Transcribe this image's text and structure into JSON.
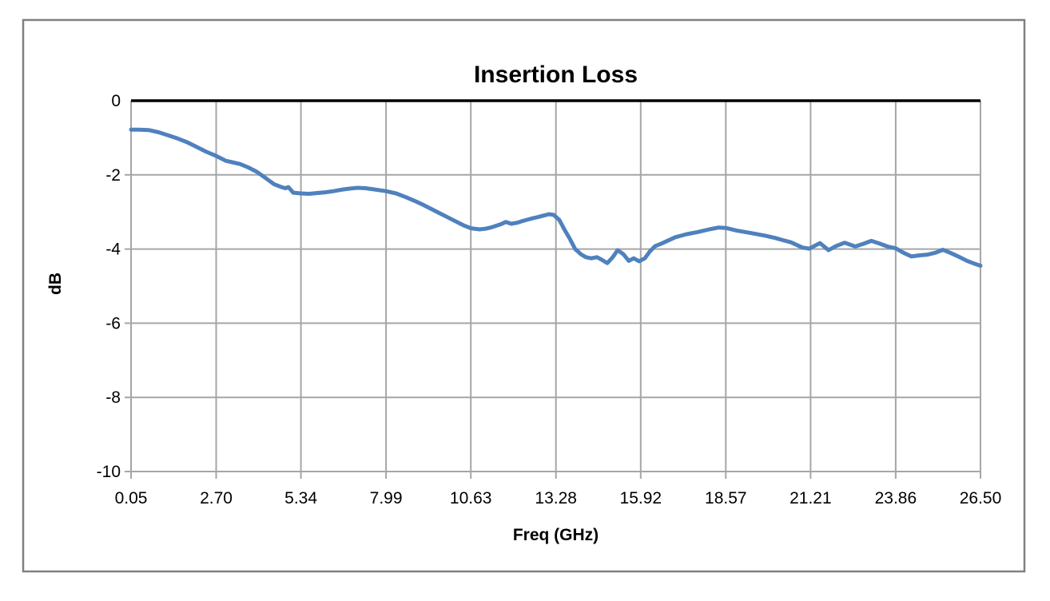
{
  "chart": {
    "background": "#ffffff",
    "plot_background": "#ffffff",
    "border_color": "#808080",
    "gridline_color": "#a6a6a6",
    "zero_axis_color": "#000000",
    "text_color": "#000000",
    "line_color": "#4f81bd"
  },
  "chart_data": {
    "type": "line",
    "title": "Insertion Loss",
    "xlabel": "Freq (GHz)",
    "ylabel": "dB",
    "xlim": [
      0.05,
      26.5
    ],
    "ylim": [
      -10,
      0
    ],
    "x_ticks": [
      0.05,
      2.7,
      5.34,
      7.99,
      10.63,
      13.28,
      15.92,
      18.57,
      21.21,
      23.86,
      26.5
    ],
    "x_tick_labels": [
      "0.05",
      "2.70",
      "5.34",
      "7.99",
      "10.63",
      "13.28",
      "15.92",
      "18.57",
      "21.21",
      "23.86",
      "26.50"
    ],
    "y_ticks": [
      0,
      -2,
      -4,
      -6,
      -8,
      -10
    ],
    "y_tick_labels": [
      "0",
      "-2",
      "-4",
      "-6",
      "-8",
      "-10"
    ],
    "grid": true,
    "legend": false,
    "series": [
      {
        "name": "Insertion Loss",
        "color": "#4f81bd",
        "x": [
          0.05,
          0.3,
          0.6,
          0.9,
          1.2,
          1.5,
          1.8,
          2.1,
          2.4,
          2.7,
          3.0,
          3.2,
          3.45,
          3.7,
          3.95,
          4.2,
          4.5,
          4.7,
          4.85,
          4.95,
          5.1,
          5.34,
          5.6,
          5.85,
          6.1,
          6.35,
          6.6,
          6.85,
          7.1,
          7.35,
          7.6,
          7.99,
          8.3,
          8.6,
          8.9,
          9.15,
          9.4,
          9.65,
          9.9,
          10.15,
          10.4,
          10.63,
          10.9,
          11.1,
          11.25,
          11.4,
          11.57,
          11.72,
          11.89,
          12.07,
          12.22,
          12.39,
          12.56,
          12.71,
          12.89,
          13.06,
          13.21,
          13.39,
          13.56,
          13.71,
          13.88,
          14.06,
          14.21,
          14.38,
          14.56,
          14.71,
          14.88,
          15.05,
          15.2,
          15.38,
          15.55,
          15.7,
          15.87,
          16.05,
          16.2,
          16.37,
          16.55,
          16.7,
          17.0,
          17.35,
          17.7,
          18.05,
          18.35,
          18.57,
          18.9,
          19.35,
          19.8,
          20.1,
          20.35,
          20.6,
          20.95,
          21.17,
          21.5,
          21.77,
          22.0,
          22.27,
          22.6,
          22.85,
          23.1,
          23.35,
          23.6,
          23.86,
          24.1,
          24.35,
          24.6,
          24.85,
          25.1,
          25.33,
          25.58,
          25.83,
          26.08,
          26.33,
          26.5
        ],
        "y": [
          -0.78,
          -0.78,
          -0.79,
          -0.85,
          -0.93,
          -1.02,
          -1.12,
          -1.25,
          -1.38,
          -1.49,
          -1.62,
          -1.66,
          -1.71,
          -1.8,
          -1.91,
          -2.06,
          -2.25,
          -2.32,
          -2.36,
          -2.33,
          -2.48,
          -2.5,
          -2.51,
          -2.49,
          -2.47,
          -2.44,
          -2.4,
          -2.37,
          -2.35,
          -2.36,
          -2.39,
          -2.44,
          -2.5,
          -2.6,
          -2.71,
          -2.81,
          -2.92,
          -3.03,
          -3.14,
          -3.25,
          -3.36,
          -3.44,
          -3.47,
          -3.45,
          -3.42,
          -3.38,
          -3.33,
          -3.27,
          -3.32,
          -3.29,
          -3.25,
          -3.21,
          -3.17,
          -3.14,
          -3.1,
          -3.06,
          -3.08,
          -3.22,
          -3.5,
          -3.72,
          -4.0,
          -4.14,
          -4.22,
          -4.25,
          -4.22,
          -4.29,
          -4.38,
          -4.22,
          -4.03,
          -4.14,
          -4.32,
          -4.25,
          -4.33,
          -4.25,
          -4.07,
          -3.92,
          -3.86,
          -3.8,
          -3.68,
          -3.6,
          -3.54,
          -3.47,
          -3.42,
          -3.43,
          -3.5,
          -3.57,
          -3.64,
          -3.7,
          -3.76,
          -3.82,
          -3.96,
          -3.99,
          -3.84,
          -4.03,
          -3.92,
          -3.83,
          -3.93,
          -3.86,
          -3.78,
          -3.85,
          -3.93,
          -3.98,
          -4.1,
          -4.2,
          -4.17,
          -4.15,
          -4.1,
          -4.02,
          -4.11,
          -4.21,
          -4.32,
          -4.4,
          -4.45
        ]
      }
    ]
  }
}
